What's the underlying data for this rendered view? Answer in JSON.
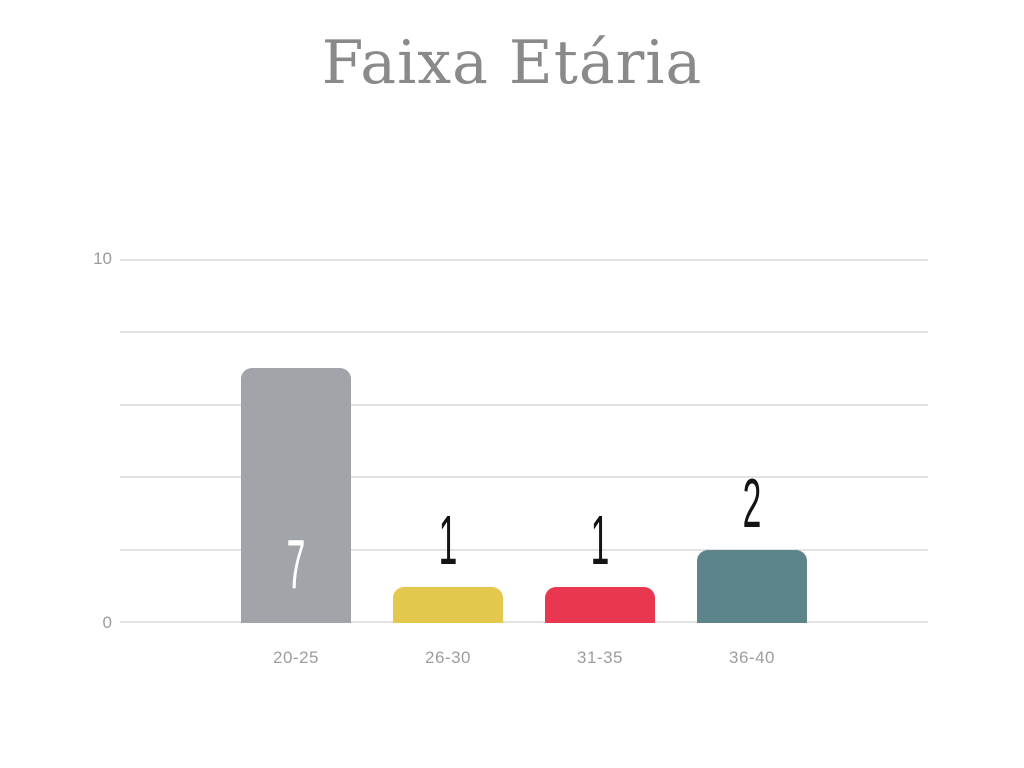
{
  "title": "Faixa Etária",
  "colors": {
    "background": "#ffffff",
    "title_text": "#8a8a8a",
    "gridline": "#e3e3e3",
    "y_tick_text": "#9b9b9b",
    "x_label_text": "#9d9d9d",
    "value_label_dark": "#141414",
    "value_label_light": "#ffffff"
  },
  "chart_data": {
    "type": "bar",
    "title": "Faixa Etária",
    "categories": [
      "20-25",
      "26-30",
      "31-35",
      "36-40"
    ],
    "values": [
      7,
      1,
      1,
      2
    ],
    "value_labels": [
      "7",
      "1",
      "1",
      "2"
    ],
    "bar_colors": [
      "#a1a5aa",
      "#e4c74d",
      "#e8374f",
      "#5e848b"
    ],
    "value_label_positions": [
      "inside",
      "above",
      "above",
      "above"
    ],
    "value_label_colors": [
      "#ffffff",
      "#141414",
      "#141414",
      "#141414"
    ],
    "xlabel": "",
    "ylabel": "",
    "ylim": [
      0,
      10
    ],
    "gridline_step": 2,
    "y_ticks": [
      {
        "value": 10,
        "label": "10"
      },
      {
        "value": 0,
        "label": "0"
      }
    ],
    "grid": "horizontal",
    "legend": "none"
  }
}
